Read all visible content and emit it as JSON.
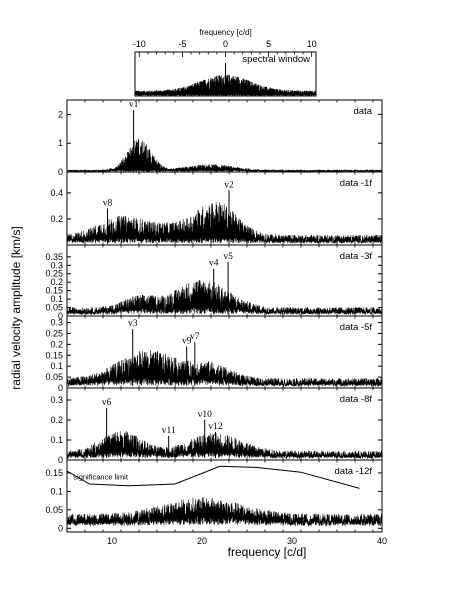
{
  "figure": {
    "xlabel": "frequency [c/d]",
    "ylabel": "radial velocity amplitude [km/s]"
  },
  "chart_data": [
    {
      "id": "window",
      "type": "line",
      "label": "spectral window",
      "xlabel": "frequency [c/d]",
      "xlim": [
        -10.5,
        10.5
      ],
      "xticks": [
        -10,
        -5,
        0,
        5,
        10
      ],
      "ylim": [
        0,
        1.05
      ],
      "envelope": {
        "center": 0,
        "width": 4,
        "peak": 1.0,
        "base": 0.1
      }
    },
    {
      "id": "data",
      "type": "line",
      "label": "data",
      "xlim": [
        5,
        40
      ],
      "ylim": [
        0,
        2.5
      ],
      "yticks": [
        0,
        1,
        2
      ],
      "envelope": {
        "base": 0.06,
        "floor": 0.08,
        "humps": [
          {
            "c": 13,
            "w": 1.8,
            "a": 0.85
          },
          {
            "c": 21,
            "w": 3.5,
            "a": 0.15
          }
        ]
      },
      "peaks": [
        {
          "name": "v1",
          "x": 12.4,
          "y": 2.15
        }
      ]
    },
    {
      "id": "data-1f",
      "type": "line",
      "label": "data -1f",
      "xlim": [
        5,
        40
      ],
      "ylim": [
        0,
        0.56
      ],
      "yticks": [
        0.2,
        0.4
      ],
      "envelope": {
        "base": 0.06,
        "floor": 0.07,
        "humps": [
          {
            "c": 11,
            "w": 3.5,
            "a": 0.11
          },
          {
            "c": 21.5,
            "w": 3.2,
            "a": 0.2
          },
          {
            "c": 16,
            "w": 3,
            "a": 0.05
          }
        ]
      },
      "peaks": [
        {
          "name": "v8",
          "x": 9.5,
          "y": 0.28
        },
        {
          "name": "v2",
          "x": 23.0,
          "y": 0.42
        }
      ]
    },
    {
      "id": "data-3f",
      "type": "line",
      "label": "data -3f",
      "xlim": [
        5,
        40
      ],
      "ylim": [
        0,
        0.42
      ],
      "yticks": [
        0,
        0.05,
        0.1,
        0.15,
        0.2,
        0.25,
        0.3,
        0.35
      ],
      "envelope": {
        "base": 0.04,
        "floor": 0.06,
        "humps": [
          {
            "c": 20,
            "w": 4,
            "a": 0.13
          },
          {
            "c": 13,
            "w": 2.5,
            "a": 0.05
          }
        ]
      },
      "peaks": [
        {
          "name": "v4",
          "x": 21.3,
          "y": 0.28
        },
        {
          "name": "v5",
          "x": 22.9,
          "y": 0.32
        }
      ]
    },
    {
      "id": "data-5f",
      "type": "line",
      "label": "data -5f",
      "xlim": [
        5,
        40
      ],
      "ylim": [
        0,
        0.33
      ],
      "yticks": [
        0,
        0.05,
        0.1,
        0.15,
        0.2,
        0.25,
        0.3
      ],
      "envelope": {
        "base": 0.035,
        "floor": 0.055,
        "humps": [
          {
            "c": 14,
            "w": 4.5,
            "a": 0.1
          },
          {
            "c": 21,
            "w": 3,
            "a": 0.05
          }
        ]
      },
      "peaks": [
        {
          "name": "v3",
          "x": 12.3,
          "y": 0.27
        },
        {
          "name": "v9",
          "x": 18.3,
          "y": 0.19
        },
        {
          "name": "v7",
          "x": 19.2,
          "y": 0.21
        }
      ]
    },
    {
      "id": "data-8f",
      "type": "line",
      "label": "data -8f",
      "xlim": [
        5,
        40
      ],
      "ylim": [
        0,
        0.36
      ],
      "yticks": [
        0,
        0.1,
        0.2,
        0.3
      ],
      "envelope": {
        "base": 0.035,
        "floor": 0.055,
        "humps": [
          {
            "c": 11,
            "w": 3,
            "a": 0.08
          },
          {
            "c": 21.5,
            "w": 4,
            "a": 0.07
          }
        ]
      },
      "peaks": [
        {
          "name": "v6",
          "x": 9.4,
          "y": 0.26
        },
        {
          "name": "v11",
          "x": 16.3,
          "y": 0.12
        },
        {
          "name": "v10",
          "x": 20.3,
          "y": 0.2
        },
        {
          "name": "v12",
          "x": 21.5,
          "y": 0.14
        }
      ]
    },
    {
      "id": "data-12f",
      "type": "line",
      "label": "data -12f",
      "xlim": [
        5,
        40
      ],
      "ylim": [
        -0.01,
        0.185
      ],
      "yticks": [
        0,
        0.05,
        0.1,
        0.15
      ],
      "xticks": [
        10,
        20,
        30,
        40
      ],
      "envelope": {
        "base": 0.03,
        "floor": 0.045,
        "humps": [
          {
            "c": 20,
            "w": 6,
            "a": 0.035
          }
        ]
      },
      "significance": {
        "label": "significance limit",
        "x": [
          5,
          7.5,
          12,
          17,
          22,
          26,
          31,
          37.5
        ],
        "y": [
          0.155,
          0.12,
          0.115,
          0.12,
          0.168,
          0.165,
          0.152,
          0.108
        ]
      }
    }
  ]
}
